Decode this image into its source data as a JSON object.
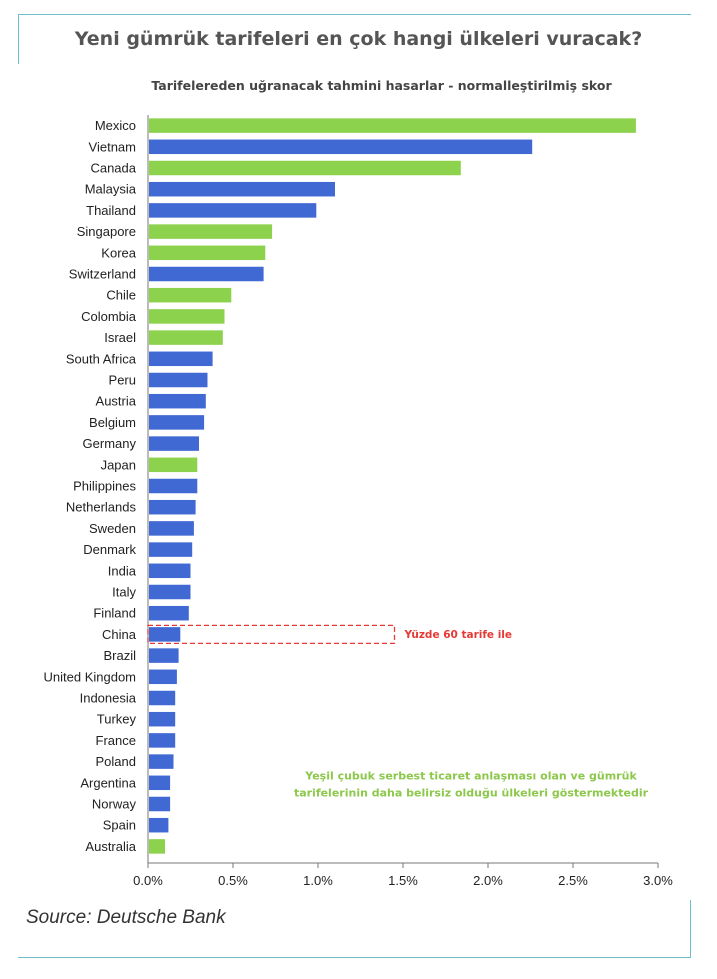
{
  "title": "Yeni gümrük tarifeleri en çok hangi ülkeleri vuracak?",
  "source": "Source: Deutsche Bank",
  "colors": {
    "fta": "#8cd24d",
    "other": "#4169d4",
    "highlight": "#e53935",
    "note": "#8cc84b",
    "frame": "#6cc0cc"
  },
  "chart_data": {
    "type": "bar",
    "orientation": "horizontal",
    "title": "Tarifelereden uğranacak tahmini hasarlar - normalleştirilmiş skor",
    "xlabel": "",
    "ylabel": "",
    "xlim": [
      0,
      3.0
    ],
    "xticks": [
      0,
      0.5,
      1.0,
      1.5,
      2.0,
      2.5,
      3.0
    ],
    "xtick_labels": [
      "0.0%",
      "0.5%",
      "1.0%",
      "1.5%",
      "2.0%",
      "2.5%",
      "3.0%"
    ],
    "categories": [
      "Mexico",
      "Vietnam",
      "Canada",
      "Malaysia",
      "Thailand",
      "Singapore",
      "Korea",
      "Switzerland",
      "Chile",
      "Colombia",
      "Israel",
      "South Africa",
      "Peru",
      "Austria",
      "Belgium",
      "Germany",
      "Japan",
      "Philippines",
      "Netherlands",
      "Sweden",
      "Denmark",
      "India",
      "Italy",
      "Finland",
      "China",
      "Brazil",
      "United Kingdom",
      "Indonesia",
      "Turkey",
      "France",
      "Poland",
      "Argentina",
      "Norway",
      "Spain",
      "Australia"
    ],
    "values": [
      2.87,
      2.26,
      1.84,
      1.1,
      0.99,
      0.73,
      0.69,
      0.68,
      0.49,
      0.45,
      0.44,
      0.38,
      0.35,
      0.34,
      0.33,
      0.3,
      0.29,
      0.29,
      0.28,
      0.27,
      0.26,
      0.25,
      0.25,
      0.24,
      0.19,
      0.18,
      0.17,
      0.16,
      0.16,
      0.16,
      0.15,
      0.13,
      0.13,
      0.12,
      0.1
    ],
    "fta": [
      true,
      false,
      true,
      false,
      false,
      true,
      true,
      false,
      true,
      true,
      true,
      false,
      false,
      false,
      false,
      false,
      true,
      false,
      false,
      false,
      false,
      false,
      false,
      false,
      false,
      false,
      false,
      false,
      false,
      false,
      false,
      false,
      false,
      false,
      true
    ],
    "annotation": {
      "category": "China",
      "text": "Yüzde 60 tarife ile",
      "value_end": 1.45
    },
    "note_lines": [
      "Yeşil çubuk serbest ticaret anlaşması olan ve gümrük",
      "tarifelerinin daha belirsiz olduğu ülkeleri göstermektedir"
    ]
  }
}
